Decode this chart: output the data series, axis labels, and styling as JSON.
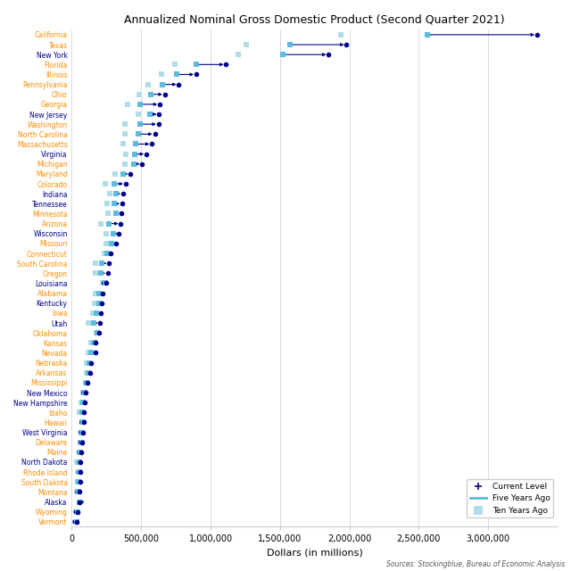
{
  "title": "Annualized Nominal Gross Domestic Product (Second Quarter 2021)",
  "xlabel": "Dollars (in millions)",
  "source_text": "Sources: Stockingblue, Bureau of Economic Analysis",
  "states": [
    "California",
    "Texas",
    "New York",
    "Florida",
    "Illinois",
    "Pennsylvania",
    "Ohio",
    "Georgia",
    "New Jersey",
    "Washington",
    "North Carolina",
    "Massachusetts",
    "Virginia",
    "Michigan",
    "Maryland",
    "Colorado",
    "Indiana",
    "Tennessee",
    "Minnesota",
    "Arizona",
    "Wisconsin",
    "Missouri",
    "Connecticut",
    "South Carolina",
    "Oregon",
    "Louisiana",
    "Alabama",
    "Kentucky",
    "Iowa",
    "Utah",
    "Oklahoma",
    "Kansas",
    "Nevada",
    "Nebraska",
    "Arkansas",
    "Mississippi",
    "New Mexico",
    "New Hampshire",
    "Idaho",
    "Hawaii",
    "West Virginia",
    "Delaware",
    "Maine",
    "North Dakota",
    "Rhode Island",
    "South Dakota",
    "Montana",
    "Alaska",
    "Wyoming",
    "Vermont"
  ],
  "orange_states": [
    "California",
    "Texas",
    "Florida",
    "Illinois",
    "Pennsylvania",
    "Georgia",
    "New Jersey",
    "North Carolina",
    "Massachusetts",
    "Maryland",
    "Colorado",
    "Indiana",
    "Tennessee",
    "Minnesota",
    "Arizona",
    "Missouri",
    "South Carolina",
    "Louisiana",
    "Alabama",
    "Kentucky",
    "Iowa",
    "Oklahoma",
    "Kansas",
    "Arkansas",
    "Mississippi",
    "New Mexico",
    "Idaho",
    "Hawaii",
    "West Virginia",
    "Maine",
    "North Dakota",
    "Rhode Island",
    "South Dakota",
    "Montana",
    "Wyoming",
    "Vermont"
  ],
  "current": [
    3352000,
    1979000,
    1850000,
    1111000,
    896000,
    771000,
    670000,
    634000,
    629000,
    625000,
    598000,
    577000,
    537000,
    507000,
    422000,
    388000,
    367000,
    362000,
    357000,
    353000,
    340000,
    321000,
    282000,
    265000,
    258000,
    245000,
    225000,
    218000,
    207000,
    203000,
    196000,
    172000,
    171000,
    139000,
    130000,
    115000,
    99000,
    92000,
    90000,
    86000,
    79000,
    77000,
    68000,
    64000,
    61000,
    58000,
    55000,
    54000,
    42000,
    36000
  ],
  "five_years_ago": [
    2560000,
    1571000,
    1519000,
    895000,
    756000,
    650000,
    570000,
    490000,
    563000,
    490000,
    477000,
    462000,
    451000,
    445000,
    370000,
    303000,
    319000,
    305000,
    316000,
    264000,
    299000,
    287000,
    254000,
    218000,
    210000,
    241000,
    196000,
    194000,
    180000,
    160000,
    185000,
    161000,
    139000,
    124000,
    116000,
    107000,
    95000,
    82000,
    71000,
    81000,
    72000,
    72000,
    60000,
    55000,
    57000,
    51000,
    46000,
    55000,
    40000,
    33000
  ],
  "ten_years_ago": [
    1939000,
    1257000,
    1196000,
    745000,
    643000,
    552000,
    487000,
    399000,
    480000,
    382000,
    381000,
    370000,
    386000,
    380000,
    313000,
    238000,
    271000,
    254000,
    263000,
    210000,
    249000,
    246000,
    233000,
    168000,
    171000,
    225000,
    168000,
    163000,
    154000,
    118000,
    174000,
    140000,
    119000,
    103000,
    104000,
    99000,
    83000,
    70000,
    55000,
    73000,
    66000,
    62000,
    54000,
    38000,
    53000,
    42000,
    36000,
    53000,
    36000,
    29000
  ],
  "current_color": "#00008B",
  "five_years_color": "#5DBBDE",
  "ten_years_color": "#B0DDE8",
  "orange_color": "#FF8C00",
  "dark_color": "#00008B",
  "xlim": [
    0,
    3500000
  ],
  "xticks": [
    0,
    500000,
    1000000,
    1500000,
    2000000,
    2500000,
    3000000
  ],
  "xlabels": [
    "0",
    "500,000",
    "1,000,000",
    "1,500,000",
    "2,000,000",
    "2,500,000",
    "3,000,000"
  ]
}
